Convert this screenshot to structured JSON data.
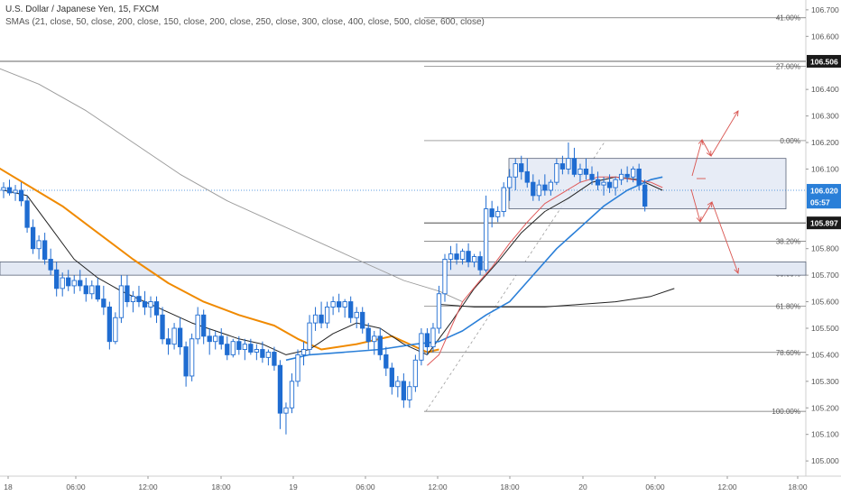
{
  "header": {
    "title": "U.S. Dollar / Japanese Yen, 15, FXCM",
    "indicator": "SMAs (21, close, 50, close, 200, close, 150, close, 200, close, 250, close, 300, close, 400, close, 500, close, 600, close)"
  },
  "colors": {
    "background": "#ffffff",
    "candle": "#1f6cd1",
    "sma_fast": "#e05a5a",
    "sma_black": "#222222",
    "sma_blue": "#2a7fd8",
    "sma_orange": "#f08a00",
    "sma_gray": "#9a9a9a",
    "zone_fill": "#e3e9f4",
    "zone_stroke": "#5a6478",
    "arrow": "#d9544f",
    "current_price": "#2a7fd8"
  },
  "chart_data": {
    "type": "candlestick",
    "y_axis": {
      "ticks": [
        "106.700",
        "106.600",
        "106.506",
        "106.400",
        "106.300",
        "106.200",
        "106.100",
        "106.020",
        "105.897",
        "105.800",
        "105.700",
        "105.600",
        "105.500",
        "105.400",
        "105.300",
        "105.200",
        "105.100",
        "105.000"
      ],
      "range": [
        104.98,
        106.72
      ]
    },
    "x_axis": {
      "ticks": [
        "18",
        "06:00",
        "12:00",
        "18:00",
        "19",
        "06:00",
        "12:00",
        "18:00",
        "20",
        "06:00",
        "12:00",
        "18:00"
      ]
    },
    "price_tags": [
      {
        "label": "106.506",
        "value": 106.506,
        "style": "dark"
      },
      {
        "label": "106.020",
        "value": 106.02,
        "style": "blue"
      },
      {
        "label": "05:57",
        "value": 105.975,
        "style": "blue"
      },
      {
        "label": "105.897",
        "value": 105.897,
        "style": "dark"
      }
    ],
    "fibonacci": [
      {
        "label": "41.00%",
        "price": 106.67
      },
      {
        "label": "27.00%",
        "price": 106.487
      },
      {
        "label": "0.00%",
        "price": 106.207
      },
      {
        "label": "38.20%",
        "price": 105.828
      },
      {
        "label": "50.00%",
        "price": 105.706
      },
      {
        "label": "61.80%",
        "price": 105.583
      },
      {
        "label": "78.60%",
        "price": 105.409
      },
      {
        "label": "100.00%",
        "price": 105.187
      }
    ],
    "candles": [
      {
        "o": 106.02,
        "h": 106.05,
        "l": 105.99,
        "c": 106.03
      },
      {
        "o": 106.03,
        "h": 106.06,
        "l": 106.0,
        "c": 106.01
      },
      {
        "o": 106.01,
        "h": 106.04,
        "l": 105.98,
        "c": 106.02
      },
      {
        "o": 106.02,
        "h": 106.05,
        "l": 105.96,
        "c": 105.98
      },
      {
        "o": 105.98,
        "h": 106.0,
        "l": 105.86,
        "c": 105.88
      },
      {
        "o": 105.88,
        "h": 105.91,
        "l": 105.78,
        "c": 105.8
      },
      {
        "o": 105.8,
        "h": 105.85,
        "l": 105.76,
        "c": 105.83
      },
      {
        "o": 105.83,
        "h": 105.86,
        "l": 105.74,
        "c": 105.76
      },
      {
        "o": 105.76,
        "h": 105.8,
        "l": 105.7,
        "c": 105.72
      },
      {
        "o": 105.72,
        "h": 105.75,
        "l": 105.62,
        "c": 105.65
      },
      {
        "o": 105.65,
        "h": 105.71,
        "l": 105.62,
        "c": 105.69
      },
      {
        "o": 105.69,
        "h": 105.72,
        "l": 105.64,
        "c": 105.66
      },
      {
        "o": 105.66,
        "h": 105.7,
        "l": 105.63,
        "c": 105.68
      },
      {
        "o": 105.68,
        "h": 105.72,
        "l": 105.64,
        "c": 105.66
      },
      {
        "o": 105.66,
        "h": 105.69,
        "l": 105.6,
        "c": 105.63
      },
      {
        "o": 105.63,
        "h": 105.68,
        "l": 105.61,
        "c": 105.66
      },
      {
        "o": 105.66,
        "h": 105.69,
        "l": 105.6,
        "c": 105.61
      },
      {
        "o": 105.61,
        "h": 105.66,
        "l": 105.55,
        "c": 105.58
      },
      {
        "o": 105.58,
        "h": 105.6,
        "l": 105.42,
        "c": 105.45
      },
      {
        "o": 105.45,
        "h": 105.56,
        "l": 105.44,
        "c": 105.54
      },
      {
        "o": 105.54,
        "h": 105.7,
        "l": 105.52,
        "c": 105.66
      },
      {
        "o": 105.66,
        "h": 105.7,
        "l": 105.58,
        "c": 105.6
      },
      {
        "o": 105.6,
        "h": 105.64,
        "l": 105.56,
        "c": 105.62
      },
      {
        "o": 105.62,
        "h": 105.66,
        "l": 105.58,
        "c": 105.6
      },
      {
        "o": 105.6,
        "h": 105.64,
        "l": 105.55,
        "c": 105.58
      },
      {
        "o": 105.58,
        "h": 105.62,
        "l": 105.54,
        "c": 105.6
      },
      {
        "o": 105.6,
        "h": 105.62,
        "l": 105.52,
        "c": 105.55
      },
      {
        "o": 105.55,
        "h": 105.58,
        "l": 105.44,
        "c": 105.46
      },
      {
        "o": 105.46,
        "h": 105.5,
        "l": 105.4,
        "c": 105.44
      },
      {
        "o": 105.44,
        "h": 105.52,
        "l": 105.42,
        "c": 105.5
      },
      {
        "o": 105.5,
        "h": 105.54,
        "l": 105.4,
        "c": 105.43
      },
      {
        "o": 105.43,
        "h": 105.45,
        "l": 105.28,
        "c": 105.32
      },
      {
        "o": 105.32,
        "h": 105.48,
        "l": 105.3,
        "c": 105.46
      },
      {
        "o": 105.46,
        "h": 105.58,
        "l": 105.44,
        "c": 105.55
      },
      {
        "o": 105.55,
        "h": 105.57,
        "l": 105.44,
        "c": 105.47
      },
      {
        "o": 105.47,
        "h": 105.5,
        "l": 105.4,
        "c": 105.45
      },
      {
        "o": 105.45,
        "h": 105.49,
        "l": 105.42,
        "c": 105.47
      },
      {
        "o": 105.47,
        "h": 105.5,
        "l": 105.42,
        "c": 105.44
      },
      {
        "o": 105.44,
        "h": 105.47,
        "l": 105.38,
        "c": 105.4
      },
      {
        "o": 105.4,
        "h": 105.46,
        "l": 105.39,
        "c": 105.45
      },
      {
        "o": 105.45,
        "h": 105.47,
        "l": 105.4,
        "c": 105.42
      },
      {
        "o": 105.42,
        "h": 105.46,
        "l": 105.38,
        "c": 105.44
      },
      {
        "o": 105.44,
        "h": 105.46,
        "l": 105.4,
        "c": 105.41
      },
      {
        "o": 105.41,
        "h": 105.44,
        "l": 105.38,
        "c": 105.42
      },
      {
        "o": 105.42,
        "h": 105.45,
        "l": 105.37,
        "c": 105.39
      },
      {
        "o": 105.39,
        "h": 105.42,
        "l": 105.36,
        "c": 105.41
      },
      {
        "o": 105.41,
        "h": 105.43,
        "l": 105.34,
        "c": 105.36
      },
      {
        "o": 105.36,
        "h": 105.38,
        "l": 105.12,
        "c": 105.18
      },
      {
        "o": 105.18,
        "h": 105.22,
        "l": 105.1,
        "c": 105.2
      },
      {
        "o": 105.2,
        "h": 105.33,
        "l": 105.18,
        "c": 105.3
      },
      {
        "o": 105.3,
        "h": 105.42,
        "l": 105.28,
        "c": 105.4
      },
      {
        "o": 105.4,
        "h": 105.45,
        "l": 105.36,
        "c": 105.42
      },
      {
        "o": 105.42,
        "h": 105.55,
        "l": 105.4,
        "c": 105.52
      },
      {
        "o": 105.52,
        "h": 105.58,
        "l": 105.49,
        "c": 105.55
      },
      {
        "o": 105.55,
        "h": 105.6,
        "l": 105.5,
        "c": 105.52
      },
      {
        "o": 105.52,
        "h": 105.6,
        "l": 105.5,
        "c": 105.58
      },
      {
        "o": 105.58,
        "h": 105.62,
        "l": 105.55,
        "c": 105.6
      },
      {
        "o": 105.6,
        "h": 105.63,
        "l": 105.56,
        "c": 105.58
      },
      {
        "o": 105.58,
        "h": 105.61,
        "l": 105.54,
        "c": 105.6
      },
      {
        "o": 105.6,
        "h": 105.62,
        "l": 105.52,
        "c": 105.54
      },
      {
        "o": 105.54,
        "h": 105.58,
        "l": 105.5,
        "c": 105.56
      },
      {
        "o": 105.56,
        "h": 105.58,
        "l": 105.48,
        "c": 105.5
      },
      {
        "o": 105.5,
        "h": 105.52,
        "l": 105.42,
        "c": 105.45
      },
      {
        "o": 105.45,
        "h": 105.49,
        "l": 105.4,
        "c": 105.47
      },
      {
        "o": 105.47,
        "h": 105.5,
        "l": 105.38,
        "c": 105.4
      },
      {
        "o": 105.4,
        "h": 105.43,
        "l": 105.32,
        "c": 105.35
      },
      {
        "o": 105.35,
        "h": 105.37,
        "l": 105.25,
        "c": 105.28
      },
      {
        "o": 105.28,
        "h": 105.32,
        "l": 105.24,
        "c": 105.3
      },
      {
        "o": 105.3,
        "h": 105.33,
        "l": 105.2,
        "c": 105.23
      },
      {
        "o": 105.23,
        "h": 105.3,
        "l": 105.2,
        "c": 105.28
      },
      {
        "o": 105.28,
        "h": 105.4,
        "l": 105.26,
        "c": 105.38
      },
      {
        "o": 105.38,
        "h": 105.5,
        "l": 105.36,
        "c": 105.48
      },
      {
        "o": 105.48,
        "h": 105.5,
        "l": 105.4,
        "c": 105.43
      },
      {
        "o": 105.43,
        "h": 105.52,
        "l": 105.41,
        "c": 105.5
      },
      {
        "o": 105.5,
        "h": 105.66,
        "l": 105.48,
        "c": 105.63
      },
      {
        "o": 105.63,
        "h": 105.78,
        "l": 105.6,
        "c": 105.76
      },
      {
        "o": 105.76,
        "h": 105.81,
        "l": 105.72,
        "c": 105.78
      },
      {
        "o": 105.78,
        "h": 105.82,
        "l": 105.74,
        "c": 105.76
      },
      {
        "o": 105.76,
        "h": 105.8,
        "l": 105.74,
        "c": 105.79
      },
      {
        "o": 105.79,
        "h": 105.82,
        "l": 105.73,
        "c": 105.75
      },
      {
        "o": 105.75,
        "h": 105.78,
        "l": 105.73,
        "c": 105.77
      },
      {
        "o": 105.77,
        "h": 105.79,
        "l": 105.7,
        "c": 105.72
      },
      {
        "o": 105.72,
        "h": 106.0,
        "l": 105.71,
        "c": 105.95
      },
      {
        "o": 105.95,
        "h": 105.98,
        "l": 105.88,
        "c": 105.92
      },
      {
        "o": 105.92,
        "h": 105.96,
        "l": 105.9,
        "c": 105.94
      },
      {
        "o": 105.94,
        "h": 106.05,
        "l": 105.92,
        "c": 106.03
      },
      {
        "o": 106.03,
        "h": 106.1,
        "l": 105.98,
        "c": 106.07
      },
      {
        "o": 106.07,
        "h": 106.14,
        "l": 106.02,
        "c": 106.12
      },
      {
        "o": 106.12,
        "h": 106.15,
        "l": 106.06,
        "c": 106.09
      },
      {
        "o": 106.09,
        "h": 106.14,
        "l": 106.03,
        "c": 106.05
      },
      {
        "o": 106.05,
        "h": 106.08,
        "l": 105.98,
        "c": 106.0
      },
      {
        "o": 106.0,
        "h": 106.06,
        "l": 105.98,
        "c": 106.04
      },
      {
        "o": 106.04,
        "h": 106.08,
        "l": 106.0,
        "c": 106.02
      },
      {
        "o": 106.02,
        "h": 106.06,
        "l": 106.0,
        "c": 106.05
      },
      {
        "o": 106.05,
        "h": 106.14,
        "l": 106.04,
        "c": 106.12
      },
      {
        "o": 106.12,
        "h": 106.15,
        "l": 106.08,
        "c": 106.1
      },
      {
        "o": 106.1,
        "h": 106.2,
        "l": 106.08,
        "c": 106.14
      },
      {
        "o": 106.14,
        "h": 106.18,
        "l": 106.07,
        "c": 106.08
      },
      {
        "o": 106.08,
        "h": 106.12,
        "l": 106.05,
        "c": 106.1
      },
      {
        "o": 106.1,
        "h": 106.14,
        "l": 106.06,
        "c": 106.08
      },
      {
        "o": 106.08,
        "h": 106.11,
        "l": 106.04,
        "c": 106.06
      },
      {
        "o": 106.06,
        "h": 106.09,
        "l": 106.02,
        "c": 106.04
      },
      {
        "o": 106.04,
        "h": 106.07,
        "l": 106.0,
        "c": 106.05
      },
      {
        "o": 106.05,
        "h": 106.08,
        "l": 106.01,
        "c": 106.03
      },
      {
        "o": 106.03,
        "h": 106.07,
        "l": 106.0,
        "c": 106.06
      },
      {
        "o": 106.06,
        "h": 106.1,
        "l": 106.04,
        "c": 106.08
      },
      {
        "o": 106.08,
        "h": 106.11,
        "l": 106.05,
        "c": 106.07
      },
      {
        "o": 106.07,
        "h": 106.11,
        "l": 106.05,
        "c": 106.1
      },
      {
        "o": 106.1,
        "h": 106.12,
        "l": 106.02,
        "c": 106.04
      },
      {
        "o": 106.04,
        "h": 106.06,
        "l": 105.94,
        "c": 105.96
      }
    ],
    "sma_red": [
      [
        72,
        105.36
      ],
      [
        74,
        105.4
      ],
      [
        76,
        105.5
      ],
      [
        78,
        105.6
      ],
      [
        81,
        105.68
      ],
      [
        83,
        105.73
      ],
      [
        86,
        105.82
      ],
      [
        89,
        105.9
      ],
      [
        92,
        105.97
      ],
      [
        95,
        106.01
      ],
      [
        98,
        106.05
      ],
      [
        101,
        106.07
      ],
      [
        104,
        106.07
      ],
      [
        107,
        106.06
      ],
      [
        110,
        106.05
      ],
      [
        112,
        106.03
      ]
    ],
    "sma_black": [
      [
        0,
        106.02
      ],
      [
        4,
        106.0
      ],
      [
        8,
        105.88
      ],
      [
        12,
        105.76
      ],
      [
        16,
        105.69
      ],
      [
        20,
        105.64
      ],
      [
        24,
        105.6
      ],
      [
        28,
        105.56
      ],
      [
        32,
        105.52
      ],
      [
        36,
        105.49
      ],
      [
        40,
        105.46
      ],
      [
        44,
        105.44
      ],
      [
        48,
        105.4
      ],
      [
        52,
        105.42
      ],
      [
        56,
        105.48
      ],
      [
        60,
        105.52
      ],
      [
        64,
        105.5
      ],
      [
        68,
        105.44
      ],
      [
        72,
        105.4
      ],
      [
        76,
        105.52
      ],
      [
        80,
        105.65
      ],
      [
        84,
        105.75
      ],
      [
        88,
        105.86
      ],
      [
        92,
        105.94
      ],
      [
        96,
        105.99
      ],
      [
        100,
        106.05
      ],
      [
        104,
        106.07
      ],
      [
        108,
        106.06
      ],
      [
        112,
        106.02
      ]
    ],
    "sma_blue": [
      [
        48,
        105.38
      ],
      [
        52,
        105.4
      ],
      [
        58,
        105.41
      ],
      [
        64,
        105.42
      ],
      [
        70,
        105.44
      ],
      [
        74,
        105.45
      ],
      [
        78,
        105.49
      ],
      [
        82,
        105.55
      ],
      [
        86,
        105.6
      ],
      [
        90,
        105.7
      ],
      [
        94,
        105.8
      ],
      [
        98,
        105.88
      ],
      [
        102,
        105.96
      ],
      [
        106,
        106.02
      ],
      [
        110,
        106.06
      ],
      [
        112,
        106.07
      ]
    ],
    "sma_orange": [
      [
        -2,
        106.12
      ],
      [
        4,
        106.04
      ],
      [
        10,
        105.96
      ],
      [
        16,
        105.86
      ],
      [
        22,
        105.76
      ],
      [
        28,
        105.67
      ],
      [
        34,
        105.6
      ],
      [
        40,
        105.55
      ],
      [
        46,
        105.51
      ],
      [
        50,
        105.46
      ],
      [
        54,
        105.42
      ],
      [
        60,
        105.44
      ],
      [
        66,
        105.47
      ],
      [
        70,
        105.43
      ],
      [
        72,
        105.41
      ],
      [
        74,
        105.42
      ]
    ],
    "sma_flat_black": [
      [
        74,
        105.59
      ],
      [
        80,
        105.58
      ],
      [
        86,
        105.58
      ],
      [
        92,
        105.58
      ],
      [
        98,
        105.59
      ],
      [
        104,
        105.6
      ],
      [
        110,
        105.62
      ],
      [
        114,
        105.65
      ]
    ],
    "sma_gray": [
      [
        -2,
        106.49
      ],
      [
        6,
        106.42
      ],
      [
        14,
        106.32
      ],
      [
        22,
        106.2
      ],
      [
        30,
        106.08
      ],
      [
        38,
        105.98
      ],
      [
        46,
        105.9
      ],
      [
        54,
        105.82
      ],
      [
        62,
        105.74
      ],
      [
        68,
        105.68
      ],
      [
        74,
        105.64
      ],
      [
        78,
        105.6
      ]
    ]
  }
}
